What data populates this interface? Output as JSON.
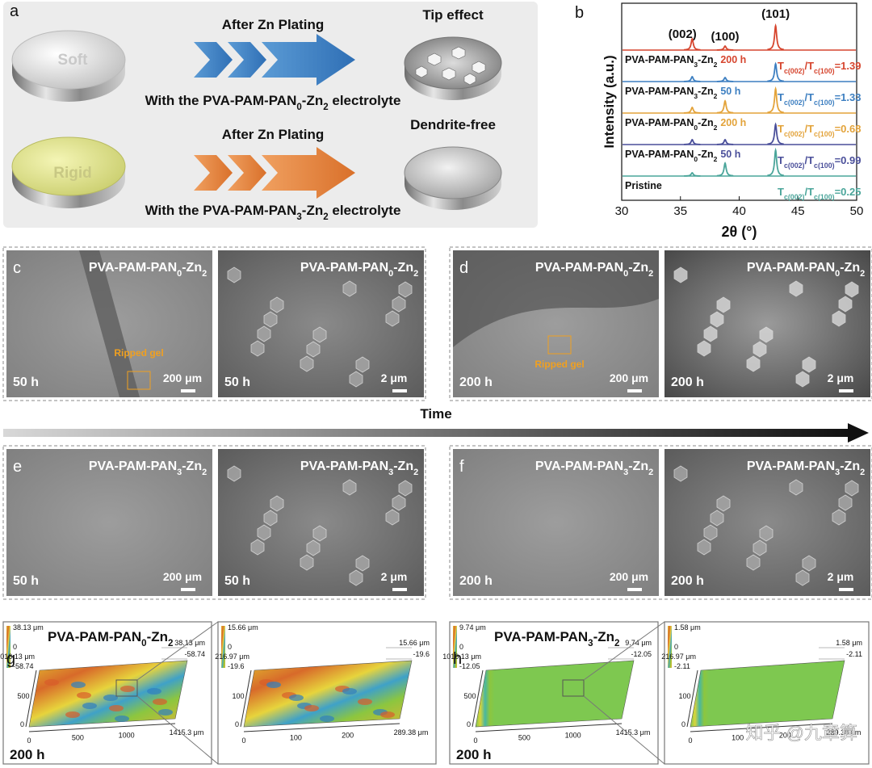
{
  "panel_a": {
    "letter": "a",
    "rows": [
      {
        "disk_label": "Soft",
        "process": "After Zn Plating",
        "result": "Tip effect",
        "caption": [
          "With the PVA-PAM-PAN",
          "0",
          "-Zn",
          "2",
          " electrolyte"
        ]
      },
      {
        "disk_label": "Rigid",
        "process": "After Zn Plating",
        "result": "Dendrite-free",
        "caption": [
          "With the PVA-PAM-PAN",
          "3",
          "-Zn",
          "2",
          " electrolyte"
        ]
      }
    ]
  },
  "chart_data": {
    "type": "xrd",
    "letter": "b",
    "xlabel": "2θ (°)",
    "ylabel": "Intensity (a.u.)",
    "xlim": [
      30,
      50
    ],
    "xticks": [
      30,
      35,
      40,
      45,
      50
    ],
    "peak_labels": [
      "(002)",
      "(100)",
      "(101)"
    ],
    "peak_x": [
      36.0,
      38.8,
      43.1
    ],
    "series": [
      {
        "name": [
          "PVA-PAM-PAN",
          "3",
          "-Zn",
          "2"
        ],
        "time": "200 h",
        "color": "#d6452e",
        "ratio": [
          "T",
          "c(002)",
          "/T",
          "c(100)",
          "=1.39"
        ],
        "values": [
          14,
          5,
          30
        ]
      },
      {
        "name": [
          "PVA-PAM-PAN",
          "3",
          "-Zn",
          "2"
        ],
        "time": "50 h",
        "color": "#3d7fc1",
        "ratio": [
          "T",
          "c(002)",
          "/T",
          "c(100)",
          "=1.33"
        ],
        "values": [
          6,
          5,
          22
        ]
      },
      {
        "name": [
          "PVA-PAM-PAN",
          "0",
          "-Zn",
          "2"
        ],
        "time": "200 h",
        "color": "#e3a33a",
        "ratio": [
          "T",
          "c(002)",
          "/T",
          "c(100)",
          "=0.68"
        ],
        "values": [
          7,
          15,
          30
        ]
      },
      {
        "name": [
          "PVA-PAM-PAN",
          "0",
          "-Zn",
          "2"
        ],
        "time": "50 h",
        "color": "#4a4f9a",
        "ratio": [
          "T",
          "c(002)",
          "/T",
          "c(100)",
          "=0.99"
        ],
        "values": [
          6,
          6,
          25
        ]
      },
      {
        "name": [
          "Pristine"
        ],
        "color": "#4aa59a",
        "ratio": [
          "T",
          "c(002)",
          "/T",
          "c(100)",
          "=0.25"
        ],
        "values": [
          4,
          16,
          32
        ]
      }
    ]
  },
  "time_arrow": "Time",
  "sem_panels": [
    {
      "letter": "c",
      "images": [
        {
          "label": [
            "PVA-PAM-PAN",
            "0",
            "-Zn",
            "2"
          ],
          "time": "50 h",
          "scale": "200 μm",
          "note": "Ripped gel"
        },
        {
          "label": [
            "PVA-PAM-PAN",
            "0",
            "-Zn",
            "2"
          ],
          "time": "50 h",
          "scale": "2 μm"
        }
      ]
    },
    {
      "letter": "d",
      "images": [
        {
          "label": [
            "PVA-PAM-PAN",
            "0",
            "-Zn",
            "2"
          ],
          "time": "200 h",
          "scale": "200 μm",
          "note": "Ripped gel"
        },
        {
          "label": [
            "PVA-PAM-PAN",
            "0",
            "-Zn",
            "2"
          ],
          "time": "200 h",
          "scale": "2 μm"
        }
      ]
    },
    {
      "letter": "e",
      "images": [
        {
          "label": [
            "PVA-PAM-PAN",
            "3",
            "-Zn",
            "2"
          ],
          "time": "50 h",
          "scale": "200 μm"
        },
        {
          "label": [
            "PVA-PAM-PAN",
            "3",
            "-Zn",
            "2"
          ],
          "time": "50 h",
          "scale": "2 μm"
        }
      ]
    },
    {
      "letter": "f",
      "images": [
        {
          "label": [
            "PVA-PAM-PAN",
            "3",
            "-Zn",
            "2"
          ],
          "time": "200 h",
          "scale": "200 μm"
        },
        {
          "label": [
            "PVA-PAM-PAN",
            "3",
            "-Zn",
            "2"
          ],
          "time": "200 h",
          "scale": "2 μm"
        }
      ]
    }
  ],
  "map_panels": [
    {
      "letter": "g",
      "title": [
        "PVA-PAM-PAN",
        "0",
        "-Zn",
        "2"
      ],
      "time": "200 h",
      "overview": {
        "colorbar": [
          "38.13 μm",
          "0",
          "-58.74"
        ],
        "z": [
          "38.13 μm",
          "-58.74"
        ],
        "y": [
          "1016.13 μm",
          "500",
          "0"
        ],
        "x": [
          "0",
          "500",
          "1000",
          "1415.3 μm"
        ]
      },
      "zoom": {
        "colorbar": [
          "15.66 μm",
          "0",
          "-19.6"
        ],
        "z": [
          "15.66 μm",
          "-19.6"
        ],
        "y": [
          "216.97 μm",
          "100",
          "0"
        ],
        "x": [
          "0",
          "100",
          "200",
          "289.38 μm"
        ]
      }
    },
    {
      "letter": "h",
      "title": [
        "PVA-PAM-PAN",
        "3",
        "-Zn",
        "2"
      ],
      "time": "200 h",
      "overview": {
        "colorbar": [
          "9.74 μm",
          "0",
          "-12.05"
        ],
        "z": [
          "9.74 μm",
          "-12.05"
        ],
        "y": [
          "1016.13 μm",
          "500",
          "0"
        ],
        "x": [
          "0",
          "500",
          "1000",
          "1415.3 μm"
        ]
      },
      "zoom": {
        "colorbar": [
          "1.58 μm",
          "0",
          "-2.11"
        ],
        "z": [
          "1.58 μm",
          "-2.11"
        ],
        "y": [
          "216.97 μm",
          "100",
          "0"
        ],
        "x": [
          "0",
          "100",
          "200",
          "289.38 μm"
        ]
      }
    }
  ],
  "watermark": "知乎 @九章算"
}
